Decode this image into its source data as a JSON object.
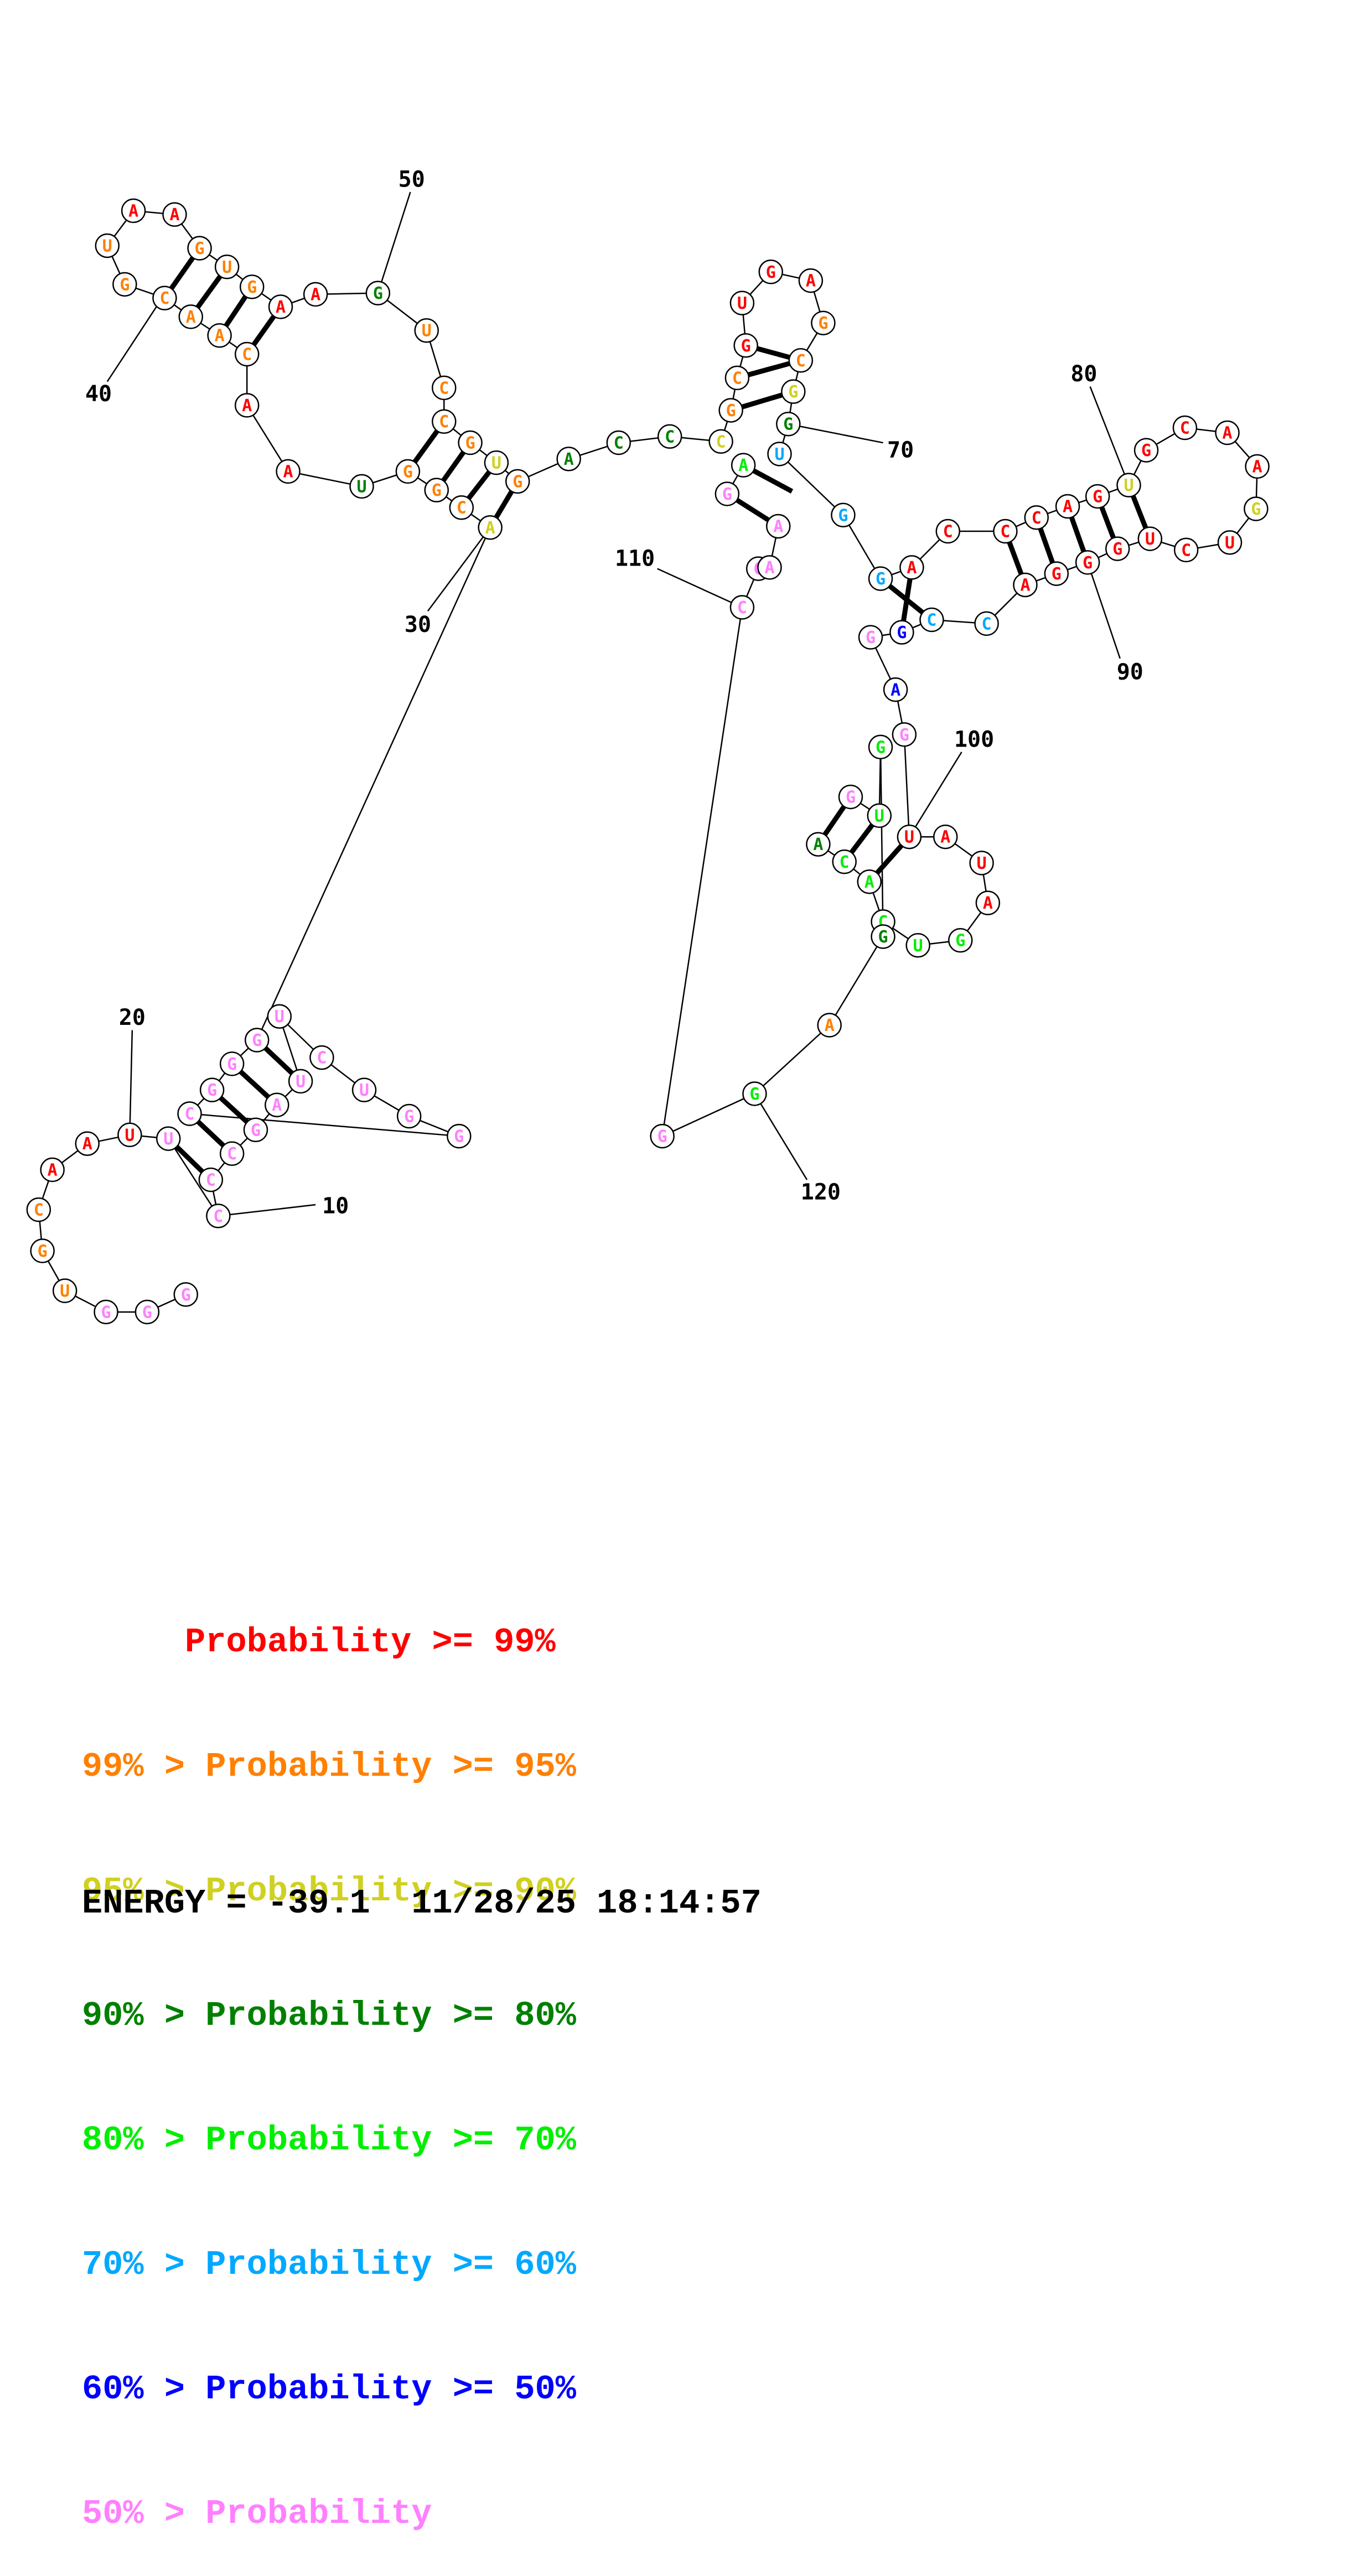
{
  "colors": {
    "r": "#ff0000",
    "o": "#ff8000",
    "y": "#d0d020",
    "dg": "#008000",
    "lg": "#00ee00",
    "c": "#00a8ff",
    "b": "#0000ff",
    "p": "#ff80ff"
  },
  "nucleotides": [
    {
      "b": "G",
      "c": "p"
    },
    {
      "b": "G",
      "c": "p"
    },
    {
      "b": "G",
      "c": "p"
    },
    {
      "b": "U",
      "c": "o"
    },
    {
      "b": "G",
      "c": "o"
    },
    {
      "b": "C",
      "c": "o"
    },
    {
      "b": "A",
      "c": "r"
    },
    {
      "b": "A",
      "c": "r"
    },
    {
      "b": "U",
      "c": "r"
    },
    {
      "b": "U",
      "c": "p"
    },
    {
      "b": "C",
      "c": "p"
    },
    {
      "b": "C",
      "c": "p"
    },
    {
      "b": "C",
      "c": "p"
    },
    {
      "b": "G",
      "c": "p"
    },
    {
      "b": "A",
      "c": "p"
    },
    {
      "b": "U",
      "c": "p"
    },
    {
      "b": "U",
      "c": "p"
    },
    {
      "b": "C",
      "c": "p"
    },
    {
      "b": "U",
      "c": "p"
    },
    {
      "b": "G",
      "c": "p"
    },
    {
      "b": "G",
      "c": "p"
    },
    {
      "b": "C",
      "c": "p"
    },
    {
      "b": "G",
      "c": "p"
    },
    {
      "b": "G",
      "c": "p"
    },
    {
      "b": "G",
      "c": "p"
    },
    {
      "b": "A",
      "c": "y"
    },
    {
      "b": "C",
      "c": "o"
    },
    {
      "b": "G",
      "c": "o"
    },
    {
      "b": "G",
      "c": "o"
    },
    {
      "b": "U",
      "c": "dg"
    },
    {
      "b": "A",
      "c": "r"
    },
    {
      "b": "A",
      "c": "r"
    },
    {
      "b": "C",
      "c": "o"
    },
    {
      "b": "A",
      "c": "o"
    },
    {
      "b": "A",
      "c": "o"
    },
    {
      "b": "C",
      "c": "o"
    },
    {
      "b": "G",
      "c": "o"
    },
    {
      "b": "U",
      "c": "o"
    },
    {
      "b": "A",
      "c": "r"
    },
    {
      "b": "A",
      "c": "r"
    },
    {
      "b": "G",
      "c": "o"
    },
    {
      "b": "U",
      "c": "o"
    },
    {
      "b": "G",
      "c": "o"
    },
    {
      "b": "A",
      "c": "r"
    },
    {
      "b": "A",
      "c": "r"
    },
    {
      "b": "G",
      "c": "dg"
    },
    {
      "b": "U",
      "c": "o"
    },
    {
      "b": "C",
      "c": "o"
    },
    {
      "b": "C",
      "c": "o"
    },
    {
      "b": "G",
      "c": "o"
    },
    {
      "b": "U",
      "c": "y"
    },
    {
      "b": "G",
      "c": "o"
    },
    {
      "b": "A",
      "c": "dg"
    },
    {
      "b": "C",
      "c": "dg"
    },
    {
      "b": "C",
      "c": "dg"
    },
    {
      "b": "C",
      "c": "y"
    },
    {
      "b": "G",
      "c": "o"
    },
    {
      "b": "C",
      "c": "o"
    },
    {
      "b": "G",
      "c": "r"
    },
    {
      "b": "U",
      "c": "r"
    },
    {
      "b": "G",
      "c": "r"
    },
    {
      "b": "A",
      "c": "r"
    },
    {
      "b": "G",
      "c": "o"
    },
    {
      "b": "C",
      "c": "o"
    },
    {
      "b": "G",
      "c": "y"
    },
    {
      "b": "G",
      "c": "dg"
    },
    {
      "b": "U",
      "c": "c"
    },
    {
      "b": "G",
      "c": "c"
    },
    {
      "b": "G",
      "c": "c"
    },
    {
      "b": "A",
      "c": "r"
    },
    {
      "b": "C",
      "c": "r"
    },
    {
      "b": "C",
      "c": "r"
    },
    {
      "b": "C",
      "c": "r"
    },
    {
      "b": "A",
      "c": "r"
    },
    {
      "b": "G",
      "c": "r"
    },
    {
      "b": "U",
      "c": "y"
    },
    {
      "b": "G",
      "c": "r"
    },
    {
      "b": "C",
      "c": "r"
    },
    {
      "b": "A",
      "c": "r"
    },
    {
      "b": "A",
      "c": "r"
    },
    {
      "b": "G",
      "c": "y"
    },
    {
      "b": "U",
      "c": "r"
    },
    {
      "b": "C",
      "c": "r"
    },
    {
      "b": "U",
      "c": "r"
    },
    {
      "b": "G",
      "c": "r"
    },
    {
      "b": "G",
      "c": "r"
    },
    {
      "b": "G",
      "c": "r"
    },
    {
      "b": "A",
      "c": "r"
    },
    {
      "b": "C",
      "c": "c"
    },
    {
      "b": "C",
      "c": "c"
    },
    {
      "b": "G",
      "c": "b"
    },
    {
      "b": "G",
      "c": "p"
    },
    {
      "b": "A",
      "c": "b"
    },
    {
      "b": "G",
      "c": "p"
    },
    {
      "b": "U",
      "c": "r"
    },
    {
      "b": "A",
      "c": "r"
    },
    {
      "b": "U",
      "c": "r"
    },
    {
      "b": "A",
      "c": "r"
    },
    {
      "b": "G",
      "c": "lg"
    },
    {
      "b": "U",
      "c": "lg"
    },
    {
      "b": "C",
      "c": "lg"
    },
    {
      "b": "A",
      "c": "lg"
    },
    {
      "b": "C",
      "c": "lg"
    },
    {
      "b": "A",
      "c": "dg"
    },
    {
      "b": "G",
      "c": "p"
    },
    {
      "b": "U",
      "c": "lg"
    },
    {
      "b": "G",
      "c": "lg"
    },
    {
      "b": "G",
      "c": "dg"
    },
    {
      "b": "A",
      "c": "o"
    },
    {
      "b": "G",
      "c": "lg"
    },
    {
      "b": "G",
      "c": "p"
    },
    {
      "b": "C",
      "c": "p"
    },
    {
      "b": "C",
      "c": "p"
    },
    {
      "b": "A",
      "c": "p"
    },
    {
      "b": "A",
      "c": "p"
    },
    {
      "b": "G",
      "c": "p"
    },
    {
      "b": "A",
      "c": "lg"
    }
  ],
  "position_labels": [
    "10",
    "20",
    "30",
    "40",
    "50",
    "70",
    "80",
    "90",
    "100",
    "110",
    "120"
  ],
  "legend": [
    {
      "text": "     Probability >= 99%",
      "color": "r"
    },
    {
      "text": "99% > Probability >= 95%",
      "color": "o"
    },
    {
      "text": "95% > Probability >= 90%",
      "color": "y"
    },
    {
      "text": "90% > Probability >= 80%",
      "color": "dg"
    },
    {
      "text": "80% > Probability >= 70%",
      "color": "lg"
    },
    {
      "text": "70% > Probability >= 60%",
      "color": "c"
    },
    {
      "text": "60% > Probability >= 50%",
      "color": "b"
    },
    {
      "text": "50% > Probability",
      "color": "p"
    }
  ],
  "footer": "ENERGY = -39.1  11/28/25 18:14:57"
}
